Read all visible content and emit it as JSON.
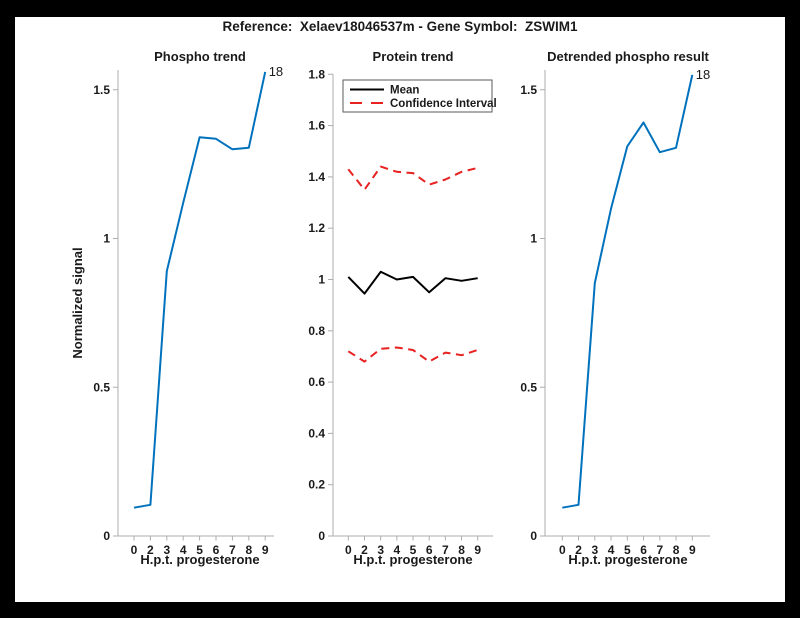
{
  "figure": {
    "title": "Reference:  Xelaev18046537m - Gene Symbol:  ZSWIM1",
    "background": "#000000",
    "canvas_color": "#FFFFFF"
  },
  "colors": {
    "blue": "#0072BD",
    "red": "#E82121",
    "black": "#000000",
    "axis_line": "#ADADAD",
    "text": "#1A1A1A"
  },
  "chart_data": [
    {
      "type": "line",
      "title": "Phospho trend",
      "xlabel": "H.p.t. progesterone",
      "ylabel": "Normalized signal",
      "x_tick_labels": [
        "0",
        "2",
        "3",
        "4",
        "5",
        "6",
        "7",
        "8",
        "9"
      ],
      "y_ticks": [
        0,
        0.5,
        1,
        1.5
      ],
      "y_tick_labels": [
        "0",
        "0.5",
        "1",
        "1.5"
      ],
      "ylim": [
        0,
        1.57
      ],
      "grid": false,
      "legend": null,
      "series": [
        {
          "name": "phospho-signal",
          "color_key": "blue",
          "style": "solid",
          "values": [
            0.095,
            0.105,
            0.89,
            1.12,
            1.34,
            1.335,
            1.3,
            1.305,
            1.56
          ]
        }
      ],
      "annotation": {
        "text": "18",
        "attach": "last-point"
      }
    },
    {
      "type": "line",
      "title": "Protein trend",
      "xlabel": "H.p.t. progesterone",
      "ylabel": "",
      "x_tick_labels": [
        "0",
        "2",
        "3",
        "4",
        "5",
        "6",
        "7",
        "8",
        "9"
      ],
      "y_ticks": [
        0,
        0.2,
        0.4,
        0.6,
        0.8,
        1,
        1.2,
        1.4,
        1.6,
        1.8
      ],
      "y_tick_labels": [
        "0",
        "0.2",
        "0.4",
        "0.6",
        "0.8",
        "1",
        "1.2",
        "1.4",
        "1.6",
        "1.8"
      ],
      "ylim": [
        0,
        1.8
      ],
      "grid": false,
      "legend": {
        "position": "top-left",
        "entries": [
          {
            "label": "Mean",
            "color_key": "black",
            "style": "solid"
          },
          {
            "label": "Confidence Interval",
            "color_key": "red",
            "style": "dashed"
          }
        ]
      },
      "series": [
        {
          "name": "mean",
          "color_key": "black",
          "style": "solid",
          "values": [
            1.01,
            0.945,
            1.03,
            1.0,
            1.01,
            0.95,
            1.005,
            0.995,
            1.005
          ]
        },
        {
          "name": "confidence-interval-upper",
          "color_key": "red",
          "style": "dashed",
          "values": [
            1.43,
            1.35,
            1.44,
            1.42,
            1.415,
            1.37,
            1.39,
            1.42,
            1.435
          ]
        },
        {
          "name": "confidence-interval-lower",
          "color_key": "red",
          "style": "dashed",
          "values": [
            0.72,
            0.68,
            0.73,
            0.735,
            0.725,
            0.68,
            0.715,
            0.705,
            0.725
          ]
        }
      ],
      "annotation": null
    },
    {
      "type": "line",
      "title": "Detrended phospho result",
      "xlabel": "H.p.t. progesterone",
      "ylabel": "",
      "x_tick_labels": [
        "0",
        "2",
        "3",
        "4",
        "5",
        "6",
        "7",
        "8",
        "9"
      ],
      "y_ticks": [
        0,
        0.5,
        1,
        1.5
      ],
      "y_tick_labels": [
        "0",
        "0.5",
        "1",
        "1.5"
      ],
      "ylim": [
        0,
        1.57
      ],
      "grid": false,
      "legend": null,
      "series": [
        {
          "name": "detrended-phospho-signal",
          "color_key": "blue",
          "style": "solid",
          "values": [
            0.095,
            0.105,
            0.85,
            1.1,
            1.31,
            1.39,
            1.29,
            1.305,
            1.55
          ]
        }
      ],
      "annotation": {
        "text": "18",
        "attach": "last-point"
      }
    }
  ]
}
